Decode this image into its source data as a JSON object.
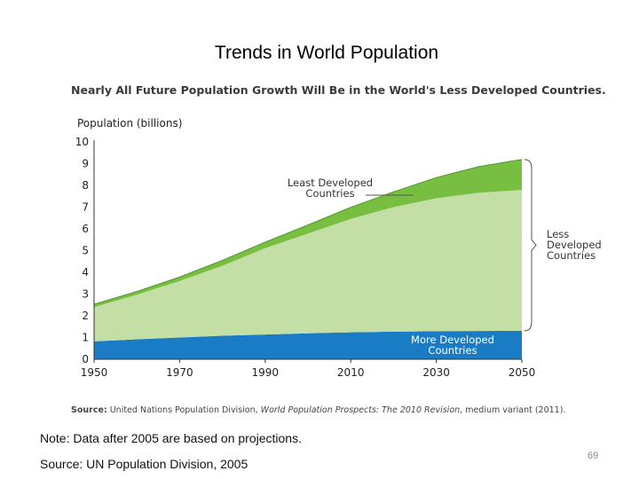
{
  "slide": {
    "title": "Trends in  World Population",
    "note": "Note: Data after 2005 are based on projections.",
    "source_note": "Source: UN Population Division, 2005",
    "page_number": "69"
  },
  "chart_data": {
    "type": "area",
    "stacked": true,
    "title": "Nearly All Future Population Growth Will Be in the World's Less Developed Countries.",
    "ylabel": "Population (billions)",
    "xlabel": "",
    "xlim": [
      1950,
      2050
    ],
    "ylim": [
      0,
      10
    ],
    "x_ticks": [
      1950,
      1970,
      1990,
      2010,
      2030,
      2050
    ],
    "y_ticks": [
      0,
      1,
      2,
      3,
      4,
      5,
      6,
      7,
      8,
      9,
      10
    ],
    "grid": false,
    "x": [
      1950,
      1960,
      1970,
      1980,
      1990,
      2000,
      2010,
      2020,
      2030,
      2040,
      2050
    ],
    "series": [
      {
        "name": "More Developed Countries",
        "color": "#1a7cc4",
        "values": [
          0.82,
          0.92,
          1.0,
          1.08,
          1.14,
          1.19,
          1.24,
          1.27,
          1.29,
          1.3,
          1.31
        ]
      },
      {
        "name": "",
        "color": "#c4dfa6",
        "values": [
          1.58,
          2.05,
          2.6,
          3.22,
          3.97,
          4.59,
          5.22,
          5.73,
          6.12,
          6.36,
          6.48
        ]
      },
      {
        "name": "Least Developed Countries",
        "color": "#78bf41",
        "values": [
          0.13,
          0.15,
          0.18,
          0.25,
          0.28,
          0.4,
          0.53,
          0.7,
          0.95,
          1.21,
          1.4
        ]
      }
    ],
    "annotations": {
      "least_developed": [
        "Least Developed",
        "Countries"
      ],
      "less_developed": [
        "Less",
        "Developed",
        "Countries"
      ],
      "more_developed": [
        "More Developed",
        "Countries"
      ]
    },
    "source": {
      "label": "Source:",
      "text1": " United Nations Population Division, ",
      "italic": "World Population Prospects: The 2010 Revision",
      "text2": ", medium variant (2011)."
    }
  }
}
